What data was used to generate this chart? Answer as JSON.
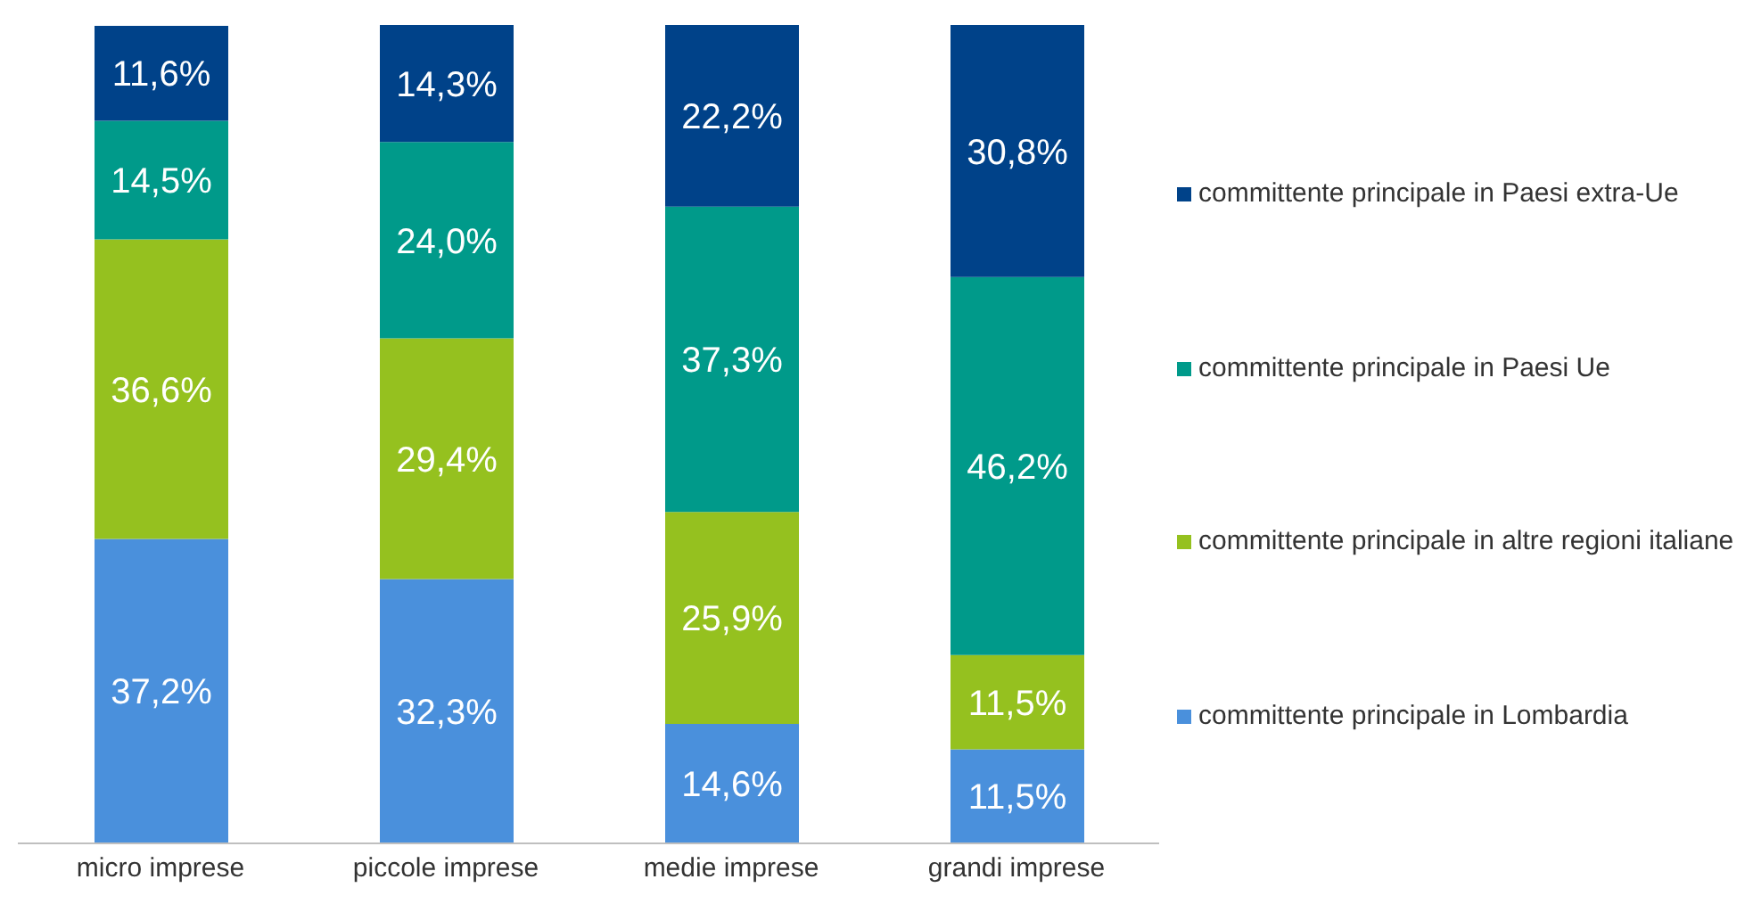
{
  "chart_data": {
    "type": "bar",
    "stacked": true,
    "categories": [
      "micro imprese",
      "piccole imprese",
      "medie imprese",
      "grandi imprese"
    ],
    "series": [
      {
        "name": "committente principale in Lombardia",
        "color": "#4a90dc",
        "values": [
          37.2,
          32.3,
          14.6,
          11.5
        ],
        "value_labels": [
          "37,2%",
          "32,3%",
          "14,6%",
          "11,5%"
        ]
      },
      {
        "name": "committente principale in altre regioni italiane",
        "color": "#95c11f",
        "values": [
          36.6,
          29.4,
          25.9,
          11.5
        ],
        "value_labels": [
          "36,6%",
          "29,4%",
          "25,9%",
          "11,5%"
        ]
      },
      {
        "name": "committente principale in Paesi Ue",
        "color": "#009a8a",
        "values": [
          14.5,
          24.0,
          37.3,
          46.2
        ],
        "value_labels": [
          "14,5%",
          "24,0%",
          "37,3%",
          "46,2%"
        ]
      },
      {
        "name": "committente principale in Paesi extra-Ue",
        "color": "#004289",
        "values": [
          11.6,
          14.3,
          22.2,
          30.8
        ],
        "value_labels": [
          "11,6%",
          "14,3%",
          "22,2%",
          "30,8%"
        ]
      }
    ],
    "legend": "right",
    "grid": false
  }
}
